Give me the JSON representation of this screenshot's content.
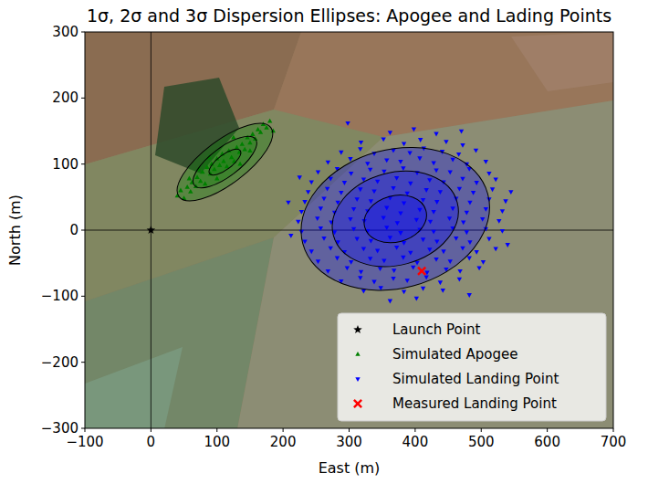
{
  "chart_data": {
    "type": "scatter",
    "title": "1σ, 2σ and 3σ Dispersion Ellipses: Apogee and Lading Points",
    "x_label": "East (m)",
    "y_label": "North (m)",
    "xlim": [
      -100,
      700
    ],
    "ylim": [
      -300,
      300
    ],
    "xticks": [
      {
        "value": -100,
        "label": "−100"
      },
      0,
      100,
      200,
      300,
      400,
      500,
      600,
      700
    ],
    "yticks": [
      {
        "value": -300,
        "label": "−300"
      },
      {
        "value": -200,
        "label": "−200"
      },
      {
        "value": -100,
        "label": "−100"
      },
      0,
      100,
      200,
      300
    ],
    "legend": "lower right",
    "series": [
      {
        "name": "Launch Point",
        "color": "#000000",
        "marker": "star",
        "x": [
          0
        ],
        "values": [
          0
        ]
      },
      {
        "name": "Simulated Apogee",
        "color": "#008000",
        "marker": "triangle-up",
        "x": [
          40,
          45,
          50,
          55,
          60,
          62,
          68,
          70,
          75,
          78,
          82,
          85,
          90,
          92,
          96,
          100,
          104,
          108,
          110,
          115,
          118,
          122,
          126,
          130,
          134,
          138,
          142,
          146,
          150,
          154,
          158,
          162,
          166,
          170,
          175,
          180,
          88,
          135,
          72,
          150,
          58,
          185,
          125,
          100
        ],
        "values": [
          52,
          60,
          48,
          65,
          58,
          72,
          66,
          80,
          74,
          88,
          70,
          95,
          85,
          100,
          92,
          108,
          98,
          115,
          104,
          96,
          120,
          110,
          104,
          125,
          118,
          130,
          122,
          140,
          132,
          145,
          138,
          152,
          148,
          160,
          155,
          165,
          110,
          100,
          92,
          120,
          78,
          150,
          140,
          78
        ],
        "ellipse_center": [
          112,
          103
        ],
        "ellipse_angle": 37,
        "ellipses": [
          {
            "semi_major": 29,
            "semi_minor": 11
          },
          {
            "semi_major": 58,
            "semi_minor": 22
          },
          {
            "semi_major": 87,
            "semi_minor": 33
          }
        ]
      },
      {
        "name": "Simulated Landing Point",
        "color": "#0000ff",
        "marker": "triangle-down",
        "x": [
          362,
          398,
          432,
          318,
          352,
          383,
          408,
          447,
          472,
          288,
          317,
          338,
          367,
          392,
          413,
          441,
          466,
          492,
          268,
          302,
          328,
          357,
          378,
          407,
          428,
          457,
          478,
          507,
          253,
          282,
          303,
          332,
          353,
          382,
          403,
          432,
          453,
          482,
          512,
          243,
          272,
          293,
          322,
          343,
          372,
          393,
          422,
          443,
          472,
          493,
          522,
          238,
          267,
          288,
          317,
          338,
          367,
          388,
          417,
          438,
          467,
          488,
          517,
          233,
          262,
          283,
          312,
          333,
          362,
          383,
          412,
          433,
          462,
          483,
          512,
          537,
          228,
          257,
          278,
          307,
          328,
          357,
          378,
          407,
          428,
          457,
          478,
          507,
          532,
          223,
          252,
          273,
          302,
          323,
          352,
          373,
          402,
          423,
          452,
          473,
          502,
          527,
          228,
          257,
          278,
          307,
          328,
          357,
          378,
          407,
          428,
          457,
          478,
          507,
          532,
          233,
          262,
          283,
          312,
          333,
          362,
          383,
          412,
          433,
          462,
          483,
          512,
          243,
          272,
          293,
          322,
          343,
          372,
          393,
          422,
          443,
          472,
          493,
          522,
          253,
          282,
          303,
          332,
          353,
          382,
          403,
          432,
          453,
          482,
          503,
          268,
          297,
          318,
          347,
          368,
          397,
          418,
          447,
          468,
          497,
          288,
          317,
          338,
          367,
          388,
          417,
          438,
          467,
          322,
          348,
          383,
          412,
          442,
          362,
          402,
          208,
          545,
          298,
          482,
          540,
          212,
          470,
          225
        ],
        "values": [
          148,
          153,
          146,
          133,
          138,
          131,
          137,
          134,
          129,
          118,
          123,
          116,
          121,
          117,
          124,
          119,
          115,
          121,
          103,
          108,
          101,
          106,
          104,
          109,
          102,
          107,
          100,
          104,
          88,
          93,
          86,
          92,
          89,
          94,
          87,
          91,
          88,
          93,
          86,
          73,
          78,
          72,
          77,
          74,
          79,
          71,
          76,
          73,
          78,
          72,
          77,
          58,
          63,
          57,
          62,
          59,
          64,
          56,
          61,
          58,
          63,
          57,
          62,
          43,
          48,
          42,
          47,
          44,
          49,
          41,
          46,
          43,
          48,
          42,
          47,
          44,
          28,
          33,
          27,
          32,
          29,
          34,
          26,
          31,
          28,
          33,
          27,
          32,
          29,
          13,
          18,
          12,
          17,
          14,
          19,
          11,
          16,
          13,
          18,
          12,
          17,
          14,
          -2,
          3,
          -3,
          2,
          -1,
          4,
          -4,
          1,
          -2,
          3,
          -3,
          2,
          -1,
          -17,
          -12,
          -18,
          -13,
          -16,
          -11,
          -19,
          -14,
          -17,
          -12,
          -18,
          -13,
          -32,
          -27,
          -33,
          -28,
          -31,
          -26,
          -34,
          -29,
          -32,
          -27,
          -33,
          -28,
          -47,
          -42,
          -48,
          -43,
          -46,
          -41,
          -49,
          -44,
          -47,
          -42,
          -48,
          -62,
          -57,
          -63,
          -58,
          -61,
          -56,
          -64,
          -59,
          -62,
          -57,
          -77,
          -72,
          -78,
          -73,
          -76,
          -71,
          -79,
          -74,
          -92,
          -87,
          -93,
          -88,
          -91,
          -107,
          -103,
          42,
          58,
          162,
          -98,
          -22,
          -8,
          150,
          80
        ],
        "ellipse_center": [
          370,
          17
        ],
        "ellipse_angle": 15,
        "ellipses": [
          {
            "semi_major": 48,
            "semi_minor": 35
          },
          {
            "semi_major": 97,
            "semi_minor": 70
          },
          {
            "semi_major": 145,
            "semi_minor": 105
          }
        ]
      },
      {
        "name": "Measured Landing Point",
        "color": "#ff0000",
        "marker": "x",
        "x": [
          410
        ],
        "values": [
          -62
        ]
      }
    ]
  }
}
